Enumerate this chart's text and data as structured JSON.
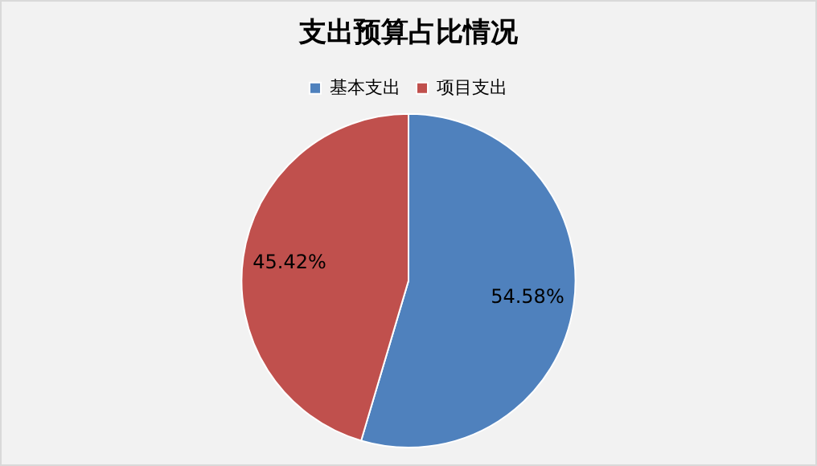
{
  "chart_data": {
    "type": "pie",
    "title": "支出预算占比情况",
    "categories": [
      "基本支出",
      "项目支出"
    ],
    "values": [
      54.58,
      45.42
    ],
    "colors": [
      "#4f81bd",
      "#c0504d"
    ],
    "value_labels": [
      "54.58%",
      "45.42%"
    ],
    "legend": "top"
  }
}
